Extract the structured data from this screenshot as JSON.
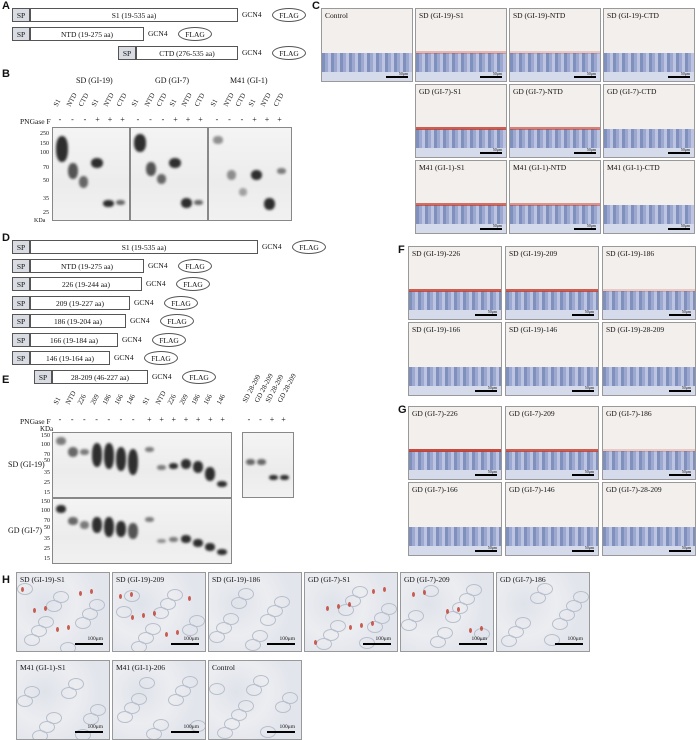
{
  "panels": {
    "A": "A",
    "B": "B",
    "C": "C",
    "D": "D",
    "E": "E",
    "F": "F",
    "G": "G",
    "H": "H"
  },
  "construct_A": [
    {
      "sp": "SP",
      "domain": "S1 (19-535 aa)",
      "gcn": "GCN4",
      "flag": "FLAG"
    },
    {
      "sp": "SP",
      "domain": "NTD (19-275 aa)",
      "gcn": "GCN4",
      "flag": "FLAG"
    },
    {
      "sp": "SP",
      "domain": "CTD (276-535 aa)",
      "gcn": "GCN4",
      "flag": "FLAG"
    }
  ],
  "blot_B": {
    "groups": [
      "SD (GI-19)",
      "GD (GI-7)",
      "M41 (GI-1)"
    ],
    "lanes": [
      "S1",
      "NTD",
      "CTD",
      "S1",
      "NTD",
      "CTD"
    ],
    "pngase_label": "PNGase F",
    "pngase": [
      "-",
      "-",
      "-",
      "+",
      "+",
      "+"
    ],
    "mw": [
      "250",
      "150",
      "100",
      "70",
      "50",
      "35",
      "25"
    ],
    "kda": "KDa"
  },
  "construct_D": [
    {
      "sp": "SP",
      "domain": "S1 (19-535 aa)",
      "gcn": "GCN4",
      "flag": "FLAG"
    },
    {
      "sp": "SP",
      "domain": "NTD (19-275 aa)",
      "gcn": "GCN4",
      "flag": "FLAG"
    },
    {
      "sp": "SP",
      "domain": "226 (19-244 aa)",
      "gcn": "GCN4",
      "flag": "FLAG"
    },
    {
      "sp": "SP",
      "domain": "209 (19-227 aa)",
      "gcn": "GCN4",
      "flag": "FLAG"
    },
    {
      "sp": "SP",
      "domain": "186 (19-204 aa)",
      "gcn": "GCN4",
      "flag": "FLAG"
    },
    {
      "sp": "SP",
      "domain": "166 (19-184 aa)",
      "gcn": "GCN4",
      "flag": "FLAG"
    },
    {
      "sp": "SP",
      "domain": "146 (19-164 aa)",
      "gcn": "GCN4",
      "flag": "FLAG"
    },
    {
      "sp": "SP",
      "domain": "28-209 (46-227 aa)",
      "gcn": "GCN4",
      "flag": "FLAG"
    }
  ],
  "blot_E": {
    "lanes": [
      "S1",
      "NTD",
      "226",
      "209",
      "186",
      "166",
      "146",
      "S1",
      "NTD",
      "226",
      "209",
      "186",
      "166",
      "146"
    ],
    "pngase_label": "PNGase F",
    "pngase": [
      "-",
      "-",
      "-",
      "-",
      "-",
      "-",
      "-",
      "+",
      "+",
      "+",
      "+",
      "+",
      "+",
      "+"
    ],
    "kda": "KDa",
    "mw_top": [
      "150",
      "100",
      "70",
      "50",
      "35",
      "25",
      "15"
    ],
    "mw_bot": [
      "150",
      "100",
      "70",
      "50",
      "35",
      "25",
      "15"
    ],
    "row_labels": [
      "SD (GI-19)",
      "GD (GI-7)"
    ],
    "side_lanes": [
      "SD 28-209",
      "GD 28-209",
      "SD 28-209",
      "GD 28-209"
    ],
    "side_pngase": [
      "-",
      "-",
      "+",
      "+"
    ]
  },
  "panel_C": [
    "Control",
    "SD (GI-19)-S1",
    "SD (GI-19)-NTD",
    "SD (GI-19)-CTD",
    "GD (GI-7)-S1",
    "GD (GI-7)-NTD",
    "GD (GI-7)-CTD",
    "M41 (GI-1)-S1",
    "M41 (GI-1)-NTD",
    "M41 (GI-1)-CTD"
  ],
  "panel_F": [
    "SD (GI-19)-226",
    "SD (GI-19)-209",
    "SD (GI-19)-186",
    "SD (GI-19)-166",
    "SD (GI-19)-146",
    "SD (GI-19)-28-209"
  ],
  "panel_G": [
    "GD (GI-7)-226",
    "GD (GI-7)-209",
    "GD (GI-7)-186",
    "GD (GI-7)-166",
    "GD (GI-7)-146",
    "GD (GI-7)-28-209"
  ],
  "panel_H": [
    "SD (GI-19)-S1",
    "SD (GI-19)-209",
    "SD (GI-19)-186",
    "GD (GI-7)-S1",
    "GD (GI-7)-209",
    "GD (GI-7)-186",
    "M41 (GI-1)-S1",
    "M41 (GI-1)-206",
    "Control"
  ],
  "scale_small": "50μm",
  "scale_h": "100μm"
}
